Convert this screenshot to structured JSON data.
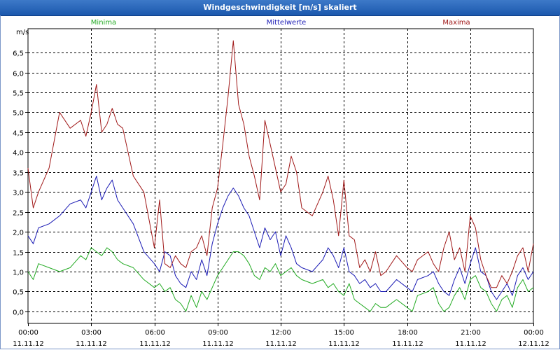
{
  "window": {
    "title": "Windgeschwindigkeit [m/s] skaliert"
  },
  "colors": {
    "minima": "#22aa22",
    "mittel": "#1a1ab4",
    "maxima": "#a01818",
    "grid": "#000000"
  },
  "chart_data": {
    "type": "line",
    "title": "Windgeschwindigkeit [m/s] skaliert",
    "ylabel": "m/s",
    "ylim": [
      -0.3,
      7.1
    ],
    "yticks": [
      0.0,
      0.5,
      1.0,
      1.5,
      2.0,
      2.5,
      3.0,
      3.5,
      4.0,
      4.5,
      5.0,
      5.5,
      6.0,
      6.5
    ],
    "ytick_labels": [
      "0,0",
      "0,5",
      "1,0",
      "1,5",
      "2,0",
      "2,5",
      "3,0",
      "3,5",
      "4,0",
      "4,5",
      "5,0",
      "5,5",
      "6,0",
      "6,5"
    ],
    "xlim": [
      0,
      24
    ],
    "xticks": [
      0,
      3,
      6,
      9,
      12,
      15,
      18,
      21,
      24
    ],
    "xtick_labels": [
      [
        "00:00",
        "11.11.12"
      ],
      [
        "03:00",
        "11.11.12"
      ],
      [
        "06:00",
        "11.11.12"
      ],
      [
        "09:00",
        "11.11.12"
      ],
      [
        "12:00",
        "11.11.12"
      ],
      [
        "15:00",
        "11.11.12"
      ],
      [
        "18:00",
        "11.11.12"
      ],
      [
        "21:00",
        "11.11.12"
      ],
      [
        "00:00",
        "12.11.12"
      ]
    ],
    "series": [
      {
        "name": "Minima",
        "color": "#22aa22",
        "x": [
          0,
          0.25,
          0.5,
          1,
          1.5,
          2,
          2.5,
          2.75,
          3,
          3.25,
          3.5,
          3.75,
          4,
          4.25,
          4.5,
          5,
          5.5,
          6,
          6.25,
          6.5,
          6.75,
          7,
          7.25,
          7.5,
          7.75,
          8,
          8.25,
          8.5,
          8.75,
          9,
          9.25,
          9.5,
          9.75,
          10,
          10.25,
          10.5,
          10.75,
          11,
          11.25,
          11.5,
          11.75,
          12,
          12.25,
          12.5,
          12.75,
          13,
          13.5,
          14,
          14.25,
          14.5,
          14.75,
          15,
          15.25,
          15.5,
          15.75,
          16,
          16.25,
          16.5,
          16.75,
          17,
          17.5,
          18,
          18.25,
          18.5,
          19,
          19.25,
          19.5,
          19.75,
          20,
          20.25,
          20.5,
          20.75,
          21,
          21.25,
          21.5,
          21.75,
          22,
          22.25,
          22.5,
          22.75,
          23,
          23.25,
          23.5,
          23.75,
          24
        ],
        "values": [
          1.0,
          0.8,
          1.2,
          1.1,
          1.0,
          1.1,
          1.4,
          1.3,
          1.6,
          1.5,
          1.4,
          1.6,
          1.5,
          1.3,
          1.2,
          1.1,
          0.8,
          0.6,
          0.7,
          0.5,
          0.6,
          0.3,
          0.2,
          0.0,
          0.4,
          0.1,
          0.5,
          0.3,
          0.6,
          0.9,
          1.1,
          1.3,
          1.5,
          1.5,
          1.4,
          1.2,
          0.9,
          0.8,
          1.1,
          1.0,
          1.2,
          0.9,
          1.0,
          1.1,
          0.9,
          0.8,
          0.7,
          0.8,
          0.6,
          0.7,
          0.5,
          0.4,
          0.7,
          0.3,
          0.2,
          0.1,
          0.0,
          0.2,
          0.1,
          0.1,
          0.3,
          0.1,
          0.0,
          0.4,
          0.5,
          0.6,
          0.2,
          0.0,
          0.1,
          0.4,
          0.6,
          0.3,
          0.8,
          0.9,
          0.6,
          0.5,
          0.2,
          0.0,
          0.3,
          0.4,
          0.1,
          0.6,
          0.8,
          0.5,
          0.6
        ]
      },
      {
        "name": "Mittelwerte",
        "color": "#1a1ab4",
        "x": [
          0,
          0.25,
          0.5,
          1,
          1.5,
          2,
          2.5,
          2.75,
          3,
          3.25,
          3.5,
          3.75,
          4,
          4.25,
          4.5,
          5,
          5.5,
          6,
          6.25,
          6.5,
          6.75,
          7,
          7.25,
          7.5,
          7.75,
          8,
          8.25,
          8.5,
          8.75,
          9,
          9.25,
          9.5,
          9.75,
          10,
          10.25,
          10.5,
          10.75,
          11,
          11.25,
          11.5,
          11.75,
          12,
          12.25,
          12.5,
          12.75,
          13,
          13.5,
          14,
          14.25,
          14.5,
          14.75,
          15,
          15.25,
          15.5,
          15.75,
          16,
          16.25,
          16.5,
          16.75,
          17,
          17.5,
          18,
          18.25,
          18.5,
          19,
          19.25,
          19.5,
          19.75,
          20,
          20.25,
          20.5,
          20.75,
          21,
          21.25,
          21.5,
          21.75,
          22,
          22.25,
          22.5,
          22.75,
          23,
          23.25,
          23.5,
          23.75,
          24
        ],
        "values": [
          1.9,
          1.7,
          2.1,
          2.2,
          2.4,
          2.7,
          2.8,
          2.6,
          3.0,
          3.4,
          2.8,
          3.1,
          3.3,
          2.8,
          2.6,
          2.2,
          1.5,
          1.2,
          1.0,
          1.5,
          1.4,
          0.9,
          0.7,
          0.6,
          1.0,
          0.8,
          1.3,
          0.9,
          1.7,
          2.2,
          2.6,
          2.9,
          3.1,
          2.9,
          2.6,
          2.4,
          2.0,
          1.6,
          2.1,
          1.8,
          2.0,
          1.4,
          1.9,
          1.6,
          1.2,
          1.1,
          1.0,
          1.3,
          1.6,
          1.4,
          1.1,
          1.6,
          1.0,
          0.9,
          0.7,
          0.8,
          0.6,
          0.7,
          0.5,
          0.5,
          0.8,
          0.6,
          0.5,
          0.8,
          0.9,
          1.0,
          0.7,
          0.5,
          0.4,
          0.8,
          1.1,
          0.7,
          1.2,
          1.6,
          1.0,
          0.9,
          0.5,
          0.3,
          0.5,
          0.7,
          0.4,
          0.9,
          1.1,
          0.8,
          1.0
        ]
      },
      {
        "name": "Maxima",
        "color": "#a01818",
        "x": [
          0,
          0.25,
          0.5,
          1,
          1.5,
          2,
          2.5,
          2.75,
          3,
          3.25,
          3.5,
          3.75,
          4,
          4.25,
          4.5,
          5,
          5.5,
          6,
          6.25,
          6.5,
          6.75,
          7,
          7.25,
          7.5,
          7.75,
          8,
          8.25,
          8.5,
          8.75,
          9,
          9.25,
          9.5,
          9.75,
          10,
          10.25,
          10.5,
          10.75,
          11,
          11.25,
          11.5,
          11.75,
          12,
          12.25,
          12.5,
          12.75,
          13,
          13.5,
          14,
          14.25,
          14.5,
          14.75,
          15,
          15.25,
          15.5,
          15.75,
          16,
          16.25,
          16.5,
          16.75,
          17,
          17.5,
          18,
          18.25,
          18.5,
          19,
          19.25,
          19.5,
          19.75,
          20,
          20.25,
          20.5,
          20.75,
          21,
          21.25,
          21.5,
          21.75,
          22,
          22.25,
          22.5,
          22.75,
          23,
          23.25,
          23.5,
          23.75,
          24
        ],
        "values": [
          3.6,
          2.6,
          3.0,
          3.6,
          5.0,
          4.6,
          4.8,
          4.4,
          5.0,
          5.7,
          4.5,
          4.7,
          5.1,
          4.7,
          4.6,
          3.4,
          3.0,
          1.6,
          2.8,
          1.2,
          1.1,
          1.4,
          1.2,
          1.1,
          1.5,
          1.6,
          1.9,
          1.4,
          2.6,
          3.1,
          4.2,
          5.4,
          6.8,
          5.2,
          4.7,
          3.9,
          3.4,
          2.8,
          4.8,
          4.2,
          3.6,
          3.0,
          3.2,
          3.9,
          3.5,
          2.6,
          2.4,
          3.0,
          3.4,
          2.8,
          1.9,
          3.3,
          1.9,
          1.8,
          1.1,
          1.3,
          1.0,
          1.5,
          0.9,
          1.0,
          1.4,
          1.1,
          1.0,
          1.3,
          1.5,
          1.2,
          1.0,
          1.6,
          2.0,
          1.3,
          1.6,
          1.0,
          2.4,
          2.1,
          1.3,
          0.9,
          0.6,
          0.6,
          0.9,
          0.7,
          1.0,
          1.4,
          1.6,
          1.0,
          1.7
        ]
      }
    ]
  }
}
